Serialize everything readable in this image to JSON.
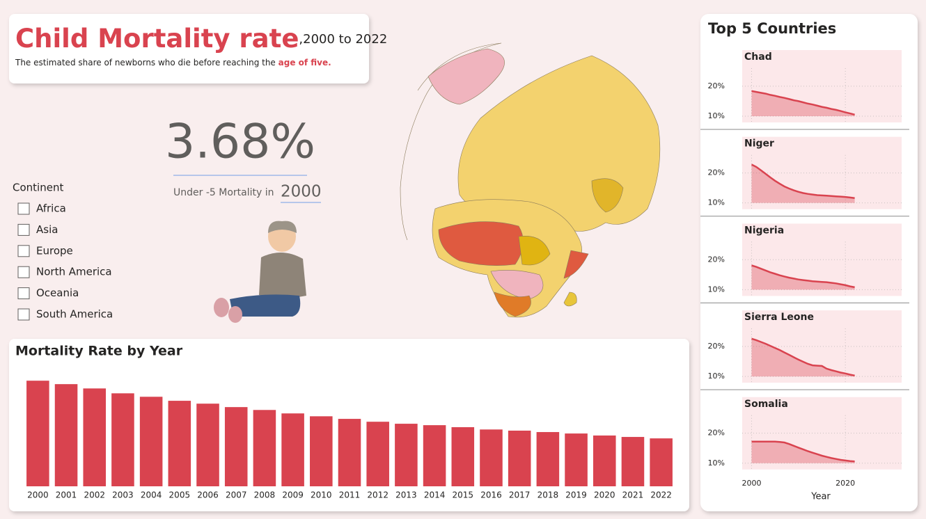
{
  "header": {
    "title": "Child Mortality rate",
    "title_suffix": ",2000 to 2022",
    "description": "The estimated share of newborns who die before reaching the ",
    "description_emphasis": "age of five."
  },
  "kpi": {
    "value": "3.68%",
    "label": "Under -5 Mortality in",
    "year": "2000"
  },
  "slicer": {
    "title": "Continent",
    "options": [
      "Africa",
      "Asia",
      "Europe",
      "North America",
      "Oceania",
      "South America"
    ]
  },
  "chart_data": [
    {
      "type": "bar",
      "title": "Mortality Rate by Year",
      "categories": [
        2000,
        2001,
        2002,
        2003,
        2004,
        2005,
        2006,
        2007,
        2008,
        2009,
        2010,
        2011,
        2012,
        2013,
        2014,
        2015,
        2016,
        2017,
        2018,
        2019,
        2020,
        2021,
        2022
      ],
      "values": [
        3.68,
        3.56,
        3.41,
        3.24,
        3.12,
        2.98,
        2.88,
        2.76,
        2.66,
        2.54,
        2.44,
        2.35,
        2.25,
        2.18,
        2.13,
        2.06,
        1.98,
        1.94,
        1.89,
        1.84,
        1.77,
        1.72,
        1.67
      ],
      "color": "#d9434f",
      "ylim": [
        0,
        4
      ]
    },
    {
      "type": "area",
      "title": "Top 5 Countries",
      "xlabel": "Year",
      "x": [
        2000,
        2001,
        2002,
        2003,
        2004,
        2005,
        2006,
        2007,
        2008,
        2009,
        2010,
        2011,
        2012,
        2013,
        2014,
        2015,
        2016,
        2017,
        2018,
        2019,
        2020,
        2021,
        2022
      ],
      "xlim": [
        1998,
        2032
      ],
      "xticks": [
        2000,
        2020
      ],
      "ylim": [
        8,
        26
      ],
      "yticks": [
        {
          "value": 10,
          "label": "10%"
        },
        {
          "value": 20,
          "label": "20%"
        }
      ],
      "series": [
        {
          "name": "Chad",
          "color": "#d9434f",
          "values": [
            18.4,
            18.1,
            17.8,
            17.5,
            17.1,
            16.8,
            16.4,
            16.1,
            15.7,
            15.3,
            15.0,
            14.6,
            14.2,
            13.9,
            13.5,
            13.1,
            12.8,
            12.4,
            12.1,
            11.7,
            11.3,
            10.9,
            10.5
          ]
        },
        {
          "name": "Niger",
          "color": "#d9434f",
          "values": [
            22.8,
            22.0,
            20.9,
            19.7,
            18.5,
            17.4,
            16.4,
            15.5,
            14.8,
            14.2,
            13.7,
            13.3,
            13.0,
            12.8,
            12.6,
            12.5,
            12.4,
            12.3,
            12.2,
            12.1,
            12.0,
            11.8,
            11.6
          ]
        },
        {
          "name": "Nigeria",
          "color": "#d9434f",
          "values": [
            18.1,
            17.6,
            17.0,
            16.4,
            15.8,
            15.3,
            14.8,
            14.4,
            14.0,
            13.7,
            13.4,
            13.2,
            13.0,
            12.8,
            12.7,
            12.6,
            12.5,
            12.3,
            12.1,
            11.8,
            11.5,
            11.1,
            10.8
          ]
        },
        {
          "name": "Sierra Leone",
          "color": "#d9434f",
          "values": [
            22.6,
            22.1,
            21.5,
            20.9,
            20.2,
            19.5,
            18.8,
            18.0,
            17.2,
            16.4,
            15.6,
            14.9,
            14.2,
            13.7,
            13.6,
            13.5,
            12.6,
            12.1,
            11.7,
            11.3,
            11.0,
            10.6,
            10.3
          ]
        },
        {
          "name": "Somalia",
          "color": "#d9434f",
          "values": [
            17.2,
            17.2,
            17.2,
            17.2,
            17.2,
            17.2,
            17.1,
            16.9,
            16.4,
            15.8,
            15.2,
            14.6,
            14.0,
            13.5,
            13.0,
            12.5,
            12.1,
            11.7,
            11.4,
            11.1,
            10.9,
            10.7,
            10.6
          ]
        }
      ]
    }
  ]
}
